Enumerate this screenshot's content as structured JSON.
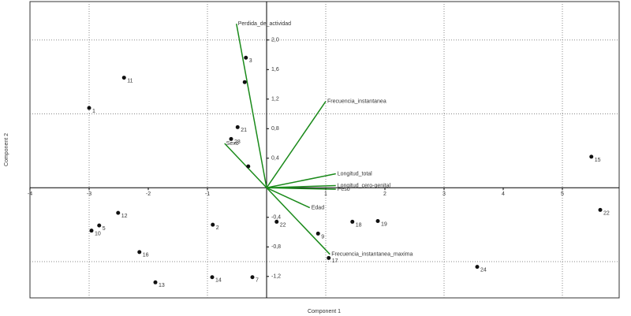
{
  "chart_data": {
    "type": "biplot",
    "x_label": "Component 1",
    "y_label": "Component 2",
    "xlim": [
      -4,
      5.96
    ],
    "ylim": [
      -1.49,
      2.52
    ],
    "xticks": [
      -4,
      -3,
      -2,
      -1,
      1,
      2,
      3,
      4,
      5
    ],
    "yticks": [
      {
        "value": -1.2,
        "label": "-1,2"
      },
      {
        "value": -0.8,
        "label": "-0,8"
      },
      {
        "value": -0.4,
        "label": "-0,4"
      },
      {
        "value": 0.4,
        "label": "0,4"
      },
      {
        "value": 0.8,
        "label": "0,8"
      },
      {
        "value": 1.2,
        "label": "1,2"
      },
      {
        "value": 1.6,
        "label": "1,6"
      },
      {
        "value": 2.0,
        "label": "2,0"
      }
    ],
    "xgrid": [
      -3,
      -1,
      1,
      3,
      5
    ],
    "ygrid": [
      -1,
      1,
      2
    ],
    "point_color": "#111111",
    "vector_color": "#1a8a1a",
    "vector_label_color": "#2a2aa0",
    "points": {
      "labels": [
        "1",
        "11",
        "3",
        null,
        "21",
        "28",
        null,
        "15",
        "22",
        "12",
        "5",
        "10",
        "2",
        "22",
        "9",
        "18",
        "19",
        "16",
        "17",
        "24",
        "13",
        "14",
        "7"
      ],
      "x": [
        -3.0,
        -2.41,
        -0.35,
        -0.37,
        -0.49,
        -0.6,
        -0.31,
        5.49,
        5.64,
        -2.51,
        -2.83,
        -2.96,
        -0.91,
        0.17,
        0.87,
        1.45,
        1.88,
        -2.15,
        1.05,
        3.56,
        -1.88,
        -0.92,
        -0.24
      ],
      "y": [
        1.08,
        1.49,
        1.76,
        1.43,
        0.82,
        0.66,
        0.29,
        0.42,
        -0.3,
        -0.34,
        -0.51,
        -0.58,
        -0.5,
        -0.46,
        -0.62,
        -0.46,
        -0.45,
        -0.87,
        -0.95,
        -1.07,
        -1.28,
        -1.21,
        -1.21
      ]
    },
    "vectors": {
      "labels": [
        "Perdida_de_actividad",
        "Frecuencia_instantanea",
        "Sexo",
        "Longitud_total",
        "Longitud_cero-genital",
        "Peso",
        "Edad",
        "Frecuencia_instantanea_maxima"
      ],
      "x": [
        -0.51,
        1.0,
        -0.71,
        1.17,
        1.17,
        1.17,
        0.73,
        1.07
      ],
      "y": [
        2.22,
        1.17,
        0.6,
        0.19,
        0.03,
        -0.02,
        -0.27,
        -0.9
      ]
    }
  }
}
